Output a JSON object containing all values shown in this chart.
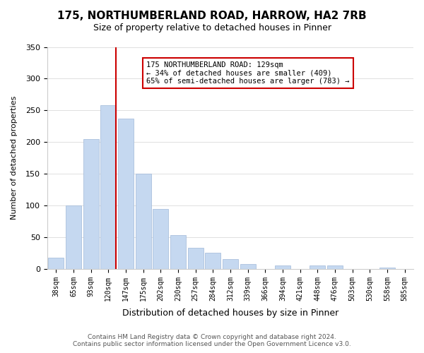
{
  "title": "175, NORTHUMBERLAND ROAD, HARROW, HA2 7RB",
  "subtitle": "Size of property relative to detached houses in Pinner",
  "xlabel": "Distribution of detached houses by size in Pinner",
  "ylabel": "Number of detached properties",
  "bins": [
    "38sqm",
    "65sqm",
    "93sqm",
    "120sqm",
    "147sqm",
    "175sqm",
    "202sqm",
    "230sqm",
    "257sqm",
    "284sqm",
    "312sqm",
    "339sqm",
    "366sqm",
    "394sqm",
    "421sqm",
    "448sqm",
    "476sqm",
    "503sqm",
    "530sqm",
    "558sqm",
    "585sqm"
  ],
  "bar_heights": [
    18,
    100,
    205,
    258,
    237,
    150,
    95,
    53,
    33,
    26,
    15,
    8,
    0,
    5,
    0,
    5,
    5,
    0,
    0,
    2,
    0
  ],
  "bar_color": "#c5d8f0",
  "bar_edge_color": "#a0b8d8",
  "vline_pos": 3.45,
  "vline_color": "#cc0000",
  "annotation_text": "175 NORTHUMBERLAND ROAD: 129sqm\n← 34% of detached houses are smaller (409)\n65% of semi-detached houses are larger (783) →",
  "annotation_box_color": "#ffffff",
  "annotation_box_edge": "#cc0000",
  "ylim": [
    0,
    350
  ],
  "yticks": [
    0,
    50,
    100,
    150,
    200,
    250,
    300,
    350
  ],
  "footer_line1": "Contains HM Land Registry data © Crown copyright and database right 2024.",
  "footer_line2": "Contains public sector information licensed under the Open Government Licence v3.0.",
  "bg_color": "#ffffff",
  "grid_color": "#e0e0e0"
}
